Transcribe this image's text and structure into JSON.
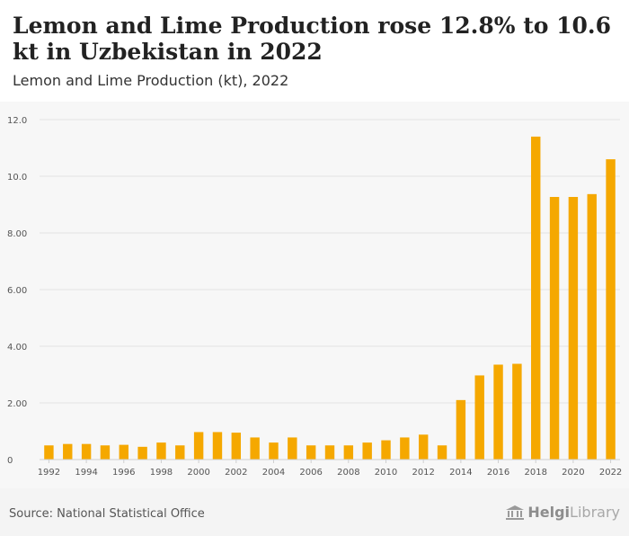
{
  "header": {
    "title": "Lemon and Lime Production rose 12.8% to 10.6 kt in Uzbekistan in 2022",
    "subtitle": "Lemon and Lime Production (kt), 2022"
  },
  "footer": {
    "source": "Source: National Statistical Office",
    "logo_part1": "Helgi",
    "logo_part2": "Library"
  },
  "colors": {
    "bar": "#f5a800",
    "grid": "#e3e3e3",
    "tick_text": "#555555"
  },
  "chart_data": {
    "type": "bar",
    "title": "Lemon and Lime Production (kt), 2022",
    "categories": [
      "1992",
      "1993",
      "1994",
      "1995",
      "1996",
      "1997",
      "1998",
      "1999",
      "2000",
      "2001",
      "2002",
      "2003",
      "2004",
      "2005",
      "2006",
      "2007",
      "2008",
      "2009",
      "2010",
      "2011",
      "2012",
      "2013",
      "2014",
      "2015",
      "2016",
      "2017",
      "2018",
      "2019",
      "2020",
      "2021",
      "2022"
    ],
    "x_tick_labels": [
      "1992",
      "1994",
      "1996",
      "1998",
      "2000",
      "2002",
      "2004",
      "2006",
      "2008",
      "2010",
      "2012",
      "2014",
      "2016",
      "2018",
      "2020",
      "2022"
    ],
    "values": [
      0.5,
      0.55,
      0.55,
      0.5,
      0.52,
      0.45,
      0.6,
      0.5,
      0.97,
      0.97,
      0.95,
      0.78,
      0.6,
      0.78,
      0.5,
      0.5,
      0.5,
      0.6,
      0.68,
      0.78,
      0.88,
      0.5,
      2.1,
      2.97,
      3.35,
      3.38,
      11.4,
      9.27,
      9.27,
      9.37,
      10.6
    ],
    "y_ticks": [
      "0",
      "2.00",
      "4.00",
      "6.00",
      "8.00",
      "10.0",
      "12.0"
    ],
    "y_tick_values": [
      0,
      2,
      4,
      6,
      8,
      10,
      12
    ],
    "ylim": [
      0,
      12
    ],
    "grid": true,
    "legend": "none"
  }
}
